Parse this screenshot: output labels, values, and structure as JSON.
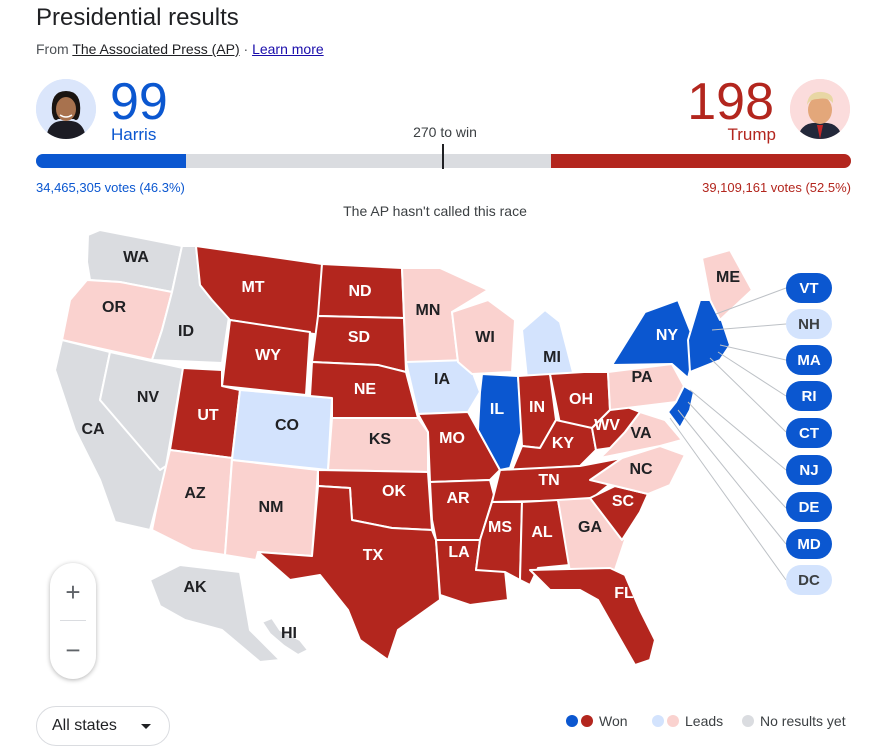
{
  "header": {
    "title": "Presidential results",
    "source_prefix": "From ",
    "source_name": "The Associated Press (AP)",
    "source_sep": " · ",
    "learn_more": "Learn more"
  },
  "candidates": {
    "harris": {
      "name": "Harris",
      "electoral_votes": "99",
      "popular": "34,465,305 votes (46.3%)",
      "color": "#0b57d0"
    },
    "trump": {
      "name": "Trump",
      "electoral_votes": "198",
      "popular": "39,109,161 votes (52.5%)",
      "color": "#b3261e"
    }
  },
  "bar": {
    "threshold_label": "270 to win",
    "total_ev": 538,
    "harris_ev": 99,
    "trump_ev": 198
  },
  "status": "The AP hasn't called this race",
  "colors": {
    "dem_won": "#0b57d0",
    "rep_won": "#b3261e",
    "dem_lead": "#d3e3fd",
    "rep_lead": "#fad2cf",
    "no_results": "#dadce0",
    "dem_label": "#ffffff",
    "rep_label": "#ffffff",
    "dark_label": "#202124",
    "pill_dem_text": "#ffffff",
    "pill_lead_text": "#3c4043"
  },
  "states": {
    "WA": "none",
    "OR": "rep_lead",
    "CA": "none",
    "NV": "none",
    "ID": "none",
    "MT": "rep_won",
    "WY": "rep_won",
    "UT": "rep_won",
    "AZ": "rep_lead",
    "CO": "dem_lead",
    "NM": "rep_lead",
    "ND": "rep_won",
    "SD": "rep_won",
    "NE": "rep_won",
    "KS": "rep_lead",
    "OK": "rep_won",
    "TX": "rep_won",
    "MN": "rep_lead",
    "IA": "dem_lead",
    "MO": "rep_won",
    "AR": "rep_won",
    "LA": "rep_won",
    "WI": "rep_lead",
    "IL": "dem_won",
    "MI": "dem_lead",
    "IN": "rep_won",
    "OH": "rep_won",
    "KY": "rep_won",
    "TN": "rep_won",
    "MS": "rep_won",
    "AL": "rep_won",
    "GA": "rep_lead",
    "FL": "rep_won",
    "SC": "rep_won",
    "NC": "rep_lead",
    "VA": "rep_lead",
    "WV": "rep_won",
    "PA": "rep_lead",
    "NY": "dem_won",
    "ME": "rep_lead",
    "AK": "none",
    "HI": "none"
  },
  "small_states": [
    {
      "abbr": "VT",
      "status": "dem_won"
    },
    {
      "abbr": "NH",
      "status": "dem_lead"
    },
    {
      "abbr": "MA",
      "status": "dem_won"
    },
    {
      "abbr": "RI",
      "status": "dem_won"
    },
    {
      "abbr": "CT",
      "status": "dem_won"
    },
    {
      "abbr": "NJ",
      "status": "dem_won"
    },
    {
      "abbr": "DE",
      "status": "dem_won"
    },
    {
      "abbr": "MD",
      "status": "dem_won"
    },
    {
      "abbr": "DC",
      "status": "dem_lead"
    }
  ],
  "zoom": {
    "in": "+",
    "out": "−"
  },
  "filter": {
    "selected": "All states"
  },
  "legend": {
    "won": "Won",
    "leads": "Leads",
    "no_results": "No results yet"
  }
}
